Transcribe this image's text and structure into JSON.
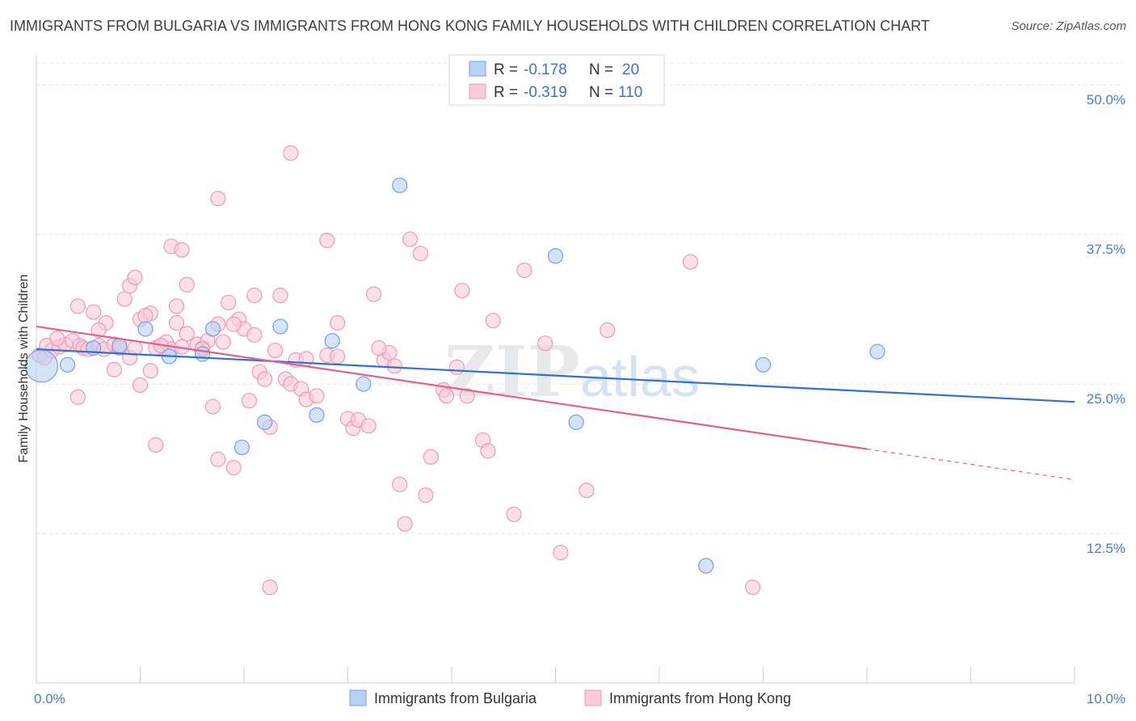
{
  "chart_data": {
    "type": "scatter",
    "title": "IMMIGRANTS FROM BULGARIA VS IMMIGRANTS FROM HONG KONG FAMILY HOUSEHOLDS WITH CHILDREN CORRELATION CHART",
    "source": "Source: ZipAtlas.com",
    "xlabel": "",
    "ylabel": "Family Households with Children",
    "xlim": [
      0,
      10
    ],
    "ylim": [
      0,
      52.5
    ],
    "x_tick_labels": [
      {
        "value": 0,
        "label": "0.0%"
      },
      {
        "value": 10,
        "label": "10.0%"
      }
    ],
    "y_ticks": [
      {
        "value": 12.5,
        "label": "12.5%"
      },
      {
        "value": 25,
        "label": "25.0%"
      },
      {
        "value": 37.5,
        "label": "37.5%"
      },
      {
        "value": 50,
        "label": "50.0%"
      }
    ],
    "watermark": {
      "part1": "ZIP",
      "part2": "atlas"
    },
    "legend": {
      "rows": [
        {
          "r_label": "R =",
          "r_value": "-0.178",
          "n_label": "N =",
          "n_value": "20"
        },
        {
          "r_label": "R =",
          "r_value": "-0.319",
          "n_label": "N =",
          "n_value": "110"
        }
      ]
    },
    "series": [
      {
        "name": "Immigrants from Bulgaria",
        "color": "#6fa0e8",
        "fill": "#b8d0f4",
        "trend_color": "#3370cc",
        "trend": {
          "x0": 0,
          "y0": 27.9,
          "x1": 10,
          "y1": 23.5,
          "solid_to": 10
        },
        "points": [
          [
            0.05,
            26.5,
            20
          ],
          [
            0.3,
            26.6,
            9
          ],
          [
            0.55,
            28.0,
            9
          ],
          [
            0.8,
            28.2,
            9
          ],
          [
            1.05,
            29.6,
            9
          ],
          [
            1.28,
            27.3,
            9
          ],
          [
            1.6,
            27.5,
            9
          ],
          [
            1.7,
            29.6,
            9
          ],
          [
            2.2,
            21.8,
            9
          ],
          [
            2.35,
            29.8,
            9
          ],
          [
            2.7,
            22.4,
            9
          ],
          [
            2.85,
            28.6,
            9
          ],
          [
            3.15,
            25.0,
            9
          ],
          [
            3.5,
            41.6,
            9
          ],
          [
            1.98,
            19.7,
            9
          ],
          [
            5.0,
            35.7,
            9
          ],
          [
            5.2,
            21.8,
            9
          ],
          [
            7.0,
            26.6,
            9
          ],
          [
            8.1,
            27.7,
            9
          ],
          [
            6.45,
            9.8,
            9
          ]
        ]
      },
      {
        "name": "Immigrants from Hong Kong",
        "color": "#ee9ab5",
        "fill": "#f8cbd9",
        "trend_color": "#e06090",
        "trend": {
          "x0": 0,
          "y0": 29.8,
          "x1": 10,
          "y1": 17.0,
          "solid_to": 8.0
        },
        "points": [
          [
            0.03,
            27.4,
            9
          ],
          [
            0.08,
            27.2,
            9
          ],
          [
            0.1,
            28.2,
            9
          ],
          [
            0.15,
            27.8,
            9
          ],
          [
            0.22,
            28.1,
            9
          ],
          [
            0.28,
            28.3,
            9
          ],
          [
            0.35,
            28.6,
            9
          ],
          [
            0.42,
            28.2,
            9
          ],
          [
            0.45,
            28.0,
            9
          ],
          [
            0.5,
            27.9,
            9
          ],
          [
            0.6,
            28.2,
            9
          ],
          [
            0.65,
            27.9,
            9
          ],
          [
            0.75,
            28.3,
            9
          ],
          [
            0.8,
            28.0,
            9
          ],
          [
            0.9,
            27.2,
            9
          ],
          [
            1.0,
            30.4,
            9
          ],
          [
            0.55,
            31.0,
            9
          ],
          [
            0.67,
            30.1,
            9
          ],
          [
            0.85,
            32.1,
            9
          ],
          [
            0.9,
            33.2,
            9
          ],
          [
            0.95,
            33.9,
            9
          ],
          [
            1.1,
            30.9,
            9
          ],
          [
            1.15,
            28.0,
            9
          ],
          [
            1.2,
            28.2,
            9
          ],
          [
            1.25,
            28.5,
            9
          ],
          [
            1.3,
            27.9,
            9
          ],
          [
            1.35,
            30.1,
            9
          ],
          [
            1.4,
            28.1,
            9
          ],
          [
            1.45,
            29.2,
            9
          ],
          [
            1.55,
            28.3,
            9
          ],
          [
            1.6,
            28.0,
            9
          ],
          [
            1.65,
            28.6,
            9
          ],
          [
            1.75,
            30.0,
            9
          ],
          [
            1.85,
            31.8,
            9
          ],
          [
            1.95,
            30.4,
            9
          ],
          [
            2.0,
            29.6,
            9
          ],
          [
            2.1,
            29.1,
            9
          ],
          [
            1.3,
            36.5,
            9
          ],
          [
            1.4,
            36.2,
            9
          ],
          [
            1.45,
            33.3,
            9
          ],
          [
            0.4,
            31.5,
            9
          ],
          [
            0.6,
            29.5,
            9
          ],
          [
            0.75,
            26.2,
            9
          ],
          [
            1.0,
            24.9,
            9
          ],
          [
            0.4,
            23.9,
            9
          ],
          [
            1.1,
            26.1,
            9
          ],
          [
            1.2,
            28.2,
            9
          ],
          [
            1.7,
            23.1,
            9
          ],
          [
            1.75,
            18.7,
            9
          ],
          [
            1.9,
            18.0,
            9
          ],
          [
            2.05,
            23.6,
            9
          ],
          [
            2.15,
            26.0,
            9
          ],
          [
            2.2,
            25.4,
            9
          ],
          [
            2.3,
            27.8,
            9
          ],
          [
            2.4,
            25.4,
            9
          ],
          [
            2.45,
            25.0,
            9
          ],
          [
            2.5,
            27.0,
            9
          ],
          [
            2.55,
            24.6,
            9
          ],
          [
            2.6,
            23.7,
            9
          ],
          [
            2.7,
            24.0,
            9
          ],
          [
            2.8,
            27.4,
            9
          ],
          [
            2.9,
            30.1,
            9
          ],
          [
            3.0,
            22.1,
            9
          ],
          [
            3.05,
            21.3,
            9
          ],
          [
            3.1,
            22.0,
            9
          ],
          [
            3.2,
            21.5,
            9
          ],
          [
            3.35,
            27.0,
            9
          ],
          [
            3.4,
            27.6,
            9
          ],
          [
            3.45,
            26.5,
            9
          ],
          [
            3.5,
            16.6,
            9
          ],
          [
            3.6,
            37.1,
            9
          ],
          [
            3.7,
            35.9,
            9
          ],
          [
            3.8,
            18.9,
            9
          ],
          [
            3.92,
            24.5,
            9
          ],
          [
            3.95,
            24.0,
            9
          ],
          [
            4.05,
            26.4,
            9
          ],
          [
            4.1,
            32.8,
            9
          ],
          [
            4.3,
            20.3,
            9
          ],
          [
            4.35,
            19.4,
            9
          ],
          [
            4.4,
            30.3,
            9
          ],
          [
            4.6,
            14.1,
            9
          ],
          [
            4.7,
            34.5,
            9
          ],
          [
            4.9,
            28.4,
            9
          ],
          [
            5.05,
            10.9,
            9
          ],
          [
            5.3,
            16.1,
            9
          ],
          [
            5.5,
            29.5,
            9
          ],
          [
            6.3,
            35.2,
            9
          ],
          [
            6.9,
            8.0,
            9
          ],
          [
            1.15,
            19.9,
            9
          ],
          [
            2.25,
            8.0,
            9
          ],
          [
            3.55,
            13.3,
            9
          ],
          [
            3.75,
            15.7,
            9
          ],
          [
            4.15,
            24.0,
            9
          ],
          [
            1.75,
            40.5,
            9
          ],
          [
            2.25,
            21.4,
            9
          ],
          [
            2.9,
            27.3,
            9
          ],
          [
            2.45,
            44.3,
            9
          ],
          [
            2.8,
            37.0,
            9
          ],
          [
            1.35,
            31.5,
            9
          ],
          [
            2.1,
            32.4,
            9
          ],
          [
            1.6,
            27.9,
            9
          ],
          [
            1.8,
            28.5,
            9
          ],
          [
            1.9,
            30.0,
            9
          ],
          [
            2.6,
            27.1,
            9
          ],
          [
            3.3,
            28.0,
            9
          ],
          [
            0.2,
            28.8,
            9
          ],
          [
            0.95,
            28.0,
            9
          ],
          [
            1.05,
            30.7,
            9
          ],
          [
            3.25,
            32.5,
            9
          ],
          [
            2.35,
            32.4,
            9
          ]
        ]
      }
    ]
  },
  "bottom_legend": [
    {
      "label": "Immigrants from Bulgaria"
    },
    {
      "label": "Immigrants from Hong Kong"
    }
  ]
}
